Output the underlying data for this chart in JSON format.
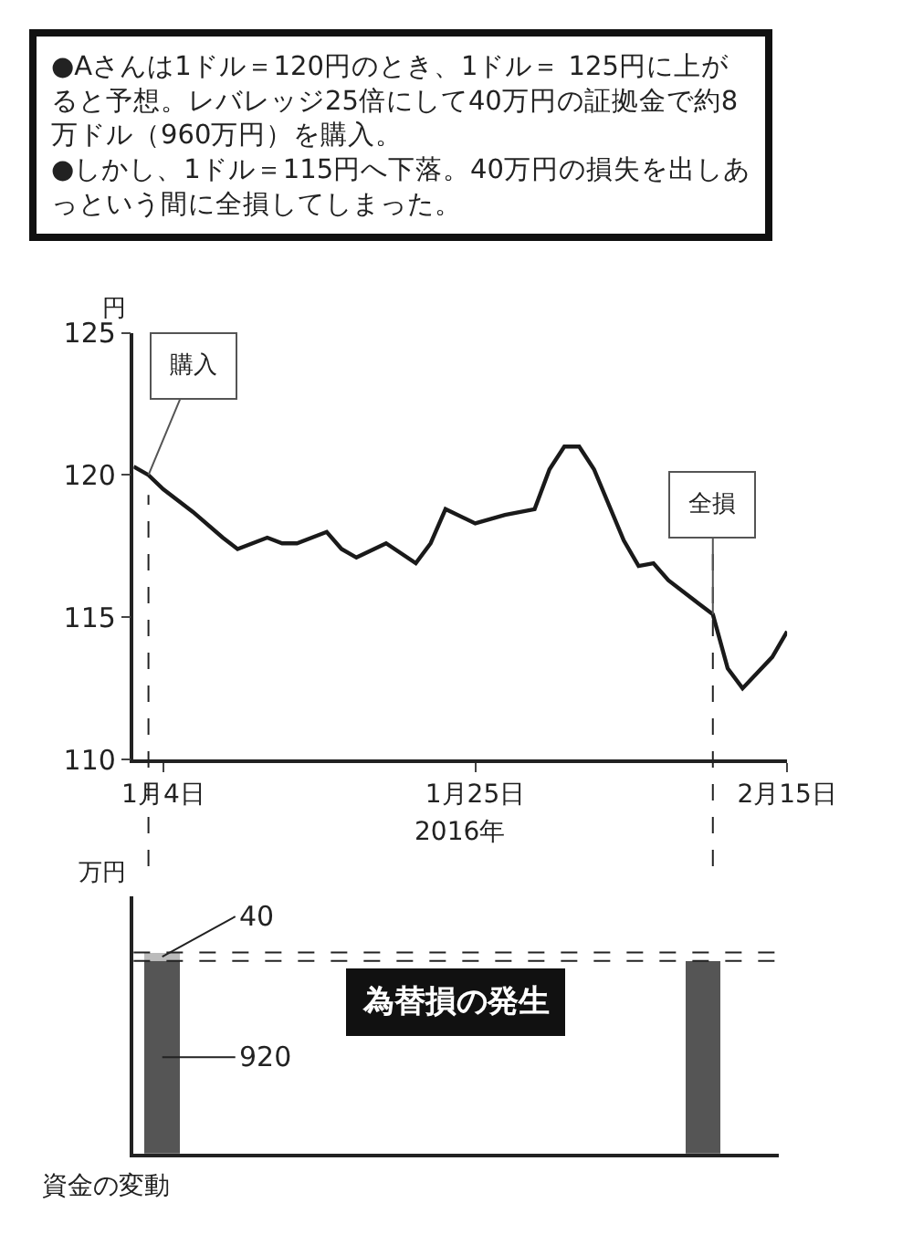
{
  "chart_data": [
    {
      "type": "line",
      "title": "●Aさんは1ドル＝120円のとき、1ドル＝ 125円に上がると予想。レバレッジ25倍にして40万円の証拠金で約8万ドル（960万円）を購入。\n●しかし、1ドル＝115円へ下落。40万円の損失を出しあっという間に全損してしまった。",
      "xlabel": "2016年",
      "ylabel": "円",
      "x": [
        "2016-01-02",
        "2016-01-03",
        "2016-01-04",
        "2016-01-06",
        "2016-01-08",
        "2016-01-09",
        "2016-01-11",
        "2016-01-12",
        "2016-01-13",
        "2016-01-15",
        "2016-01-16",
        "2016-01-17",
        "2016-01-19",
        "2016-01-21",
        "2016-01-22",
        "2016-01-23",
        "2016-01-25",
        "2016-01-27",
        "2016-01-29",
        "2016-01-30",
        "2016-01-31",
        "2016-02-01",
        "2016-02-02",
        "2016-02-04",
        "2016-02-05",
        "2016-02-06",
        "2016-02-07",
        "2016-02-09",
        "2016-02-10",
        "2016-02-11",
        "2016-02-12",
        "2016-02-14",
        "2016-02-15"
      ],
      "series": [
        {
          "color": "#1a1a1a",
          "values": [
            120.3,
            120.0,
            119.5,
            118.7,
            117.8,
            117.4,
            117.8,
            117.6,
            117.6,
            118.0,
            117.4,
            117.1,
            117.6,
            116.9,
            117.6,
            118.8,
            118.3,
            118.6,
            118.8,
            120.2,
            121.0,
            121.0,
            120.2,
            117.7,
            116.8,
            116.9,
            116.3,
            115.5,
            115.1,
            113.2,
            112.5,
            113.6,
            114.5
          ]
        }
      ],
      "xlim": [
        "2016-01-02",
        "2016-02-15"
      ],
      "xticks": [
        {
          "value": "2016-01-04",
          "label": "1月4日"
        },
        {
          "value": "2016-01-25",
          "label": "1月25日"
        },
        {
          "value": "2016-02-15",
          "label": "2月15日"
        }
      ],
      "ylim": [
        110,
        125
      ],
      "yticks": [
        110,
        115,
        120,
        125
      ],
      "annotations": [
        {
          "text": "購入",
          "x": "2016-01-03",
          "y": 120.0
        },
        {
          "text": "全損",
          "x": "2016-02-10",
          "y": 115.1
        }
      ],
      "ref_lines": [
        {
          "axis": "x",
          "value": "2016-01-03",
          "line_style": "dashed"
        },
        {
          "axis": "x",
          "value": "2016-02-10",
          "line_style": "dashed"
        }
      ],
      "grid": false,
      "marker": "none",
      "line_style": "solid"
    },
    {
      "type": "bar",
      "stacked": true,
      "xlabel": "資金の変動",
      "ylabel": "万円",
      "categories": [
        null,
        null
      ],
      "series": [
        {
          "color": "#555555",
          "values": [
            920,
            920
          ],
          "value_labels": [
            "920",
            null
          ]
        },
        {
          "color": "#bbbbbb",
          "values": [
            40,
            null
          ],
          "value_labels": [
            "40",
            null
          ]
        }
      ],
      "tick_labels": false,
      "annotations": [
        "為替損の発生"
      ],
      "ref_lines": [
        {
          "axis": "y",
          "value": 960,
          "line_style": "dashed"
        },
        {
          "axis": "y",
          "value": 920,
          "line_style": "dashed"
        }
      ]
    }
  ]
}
